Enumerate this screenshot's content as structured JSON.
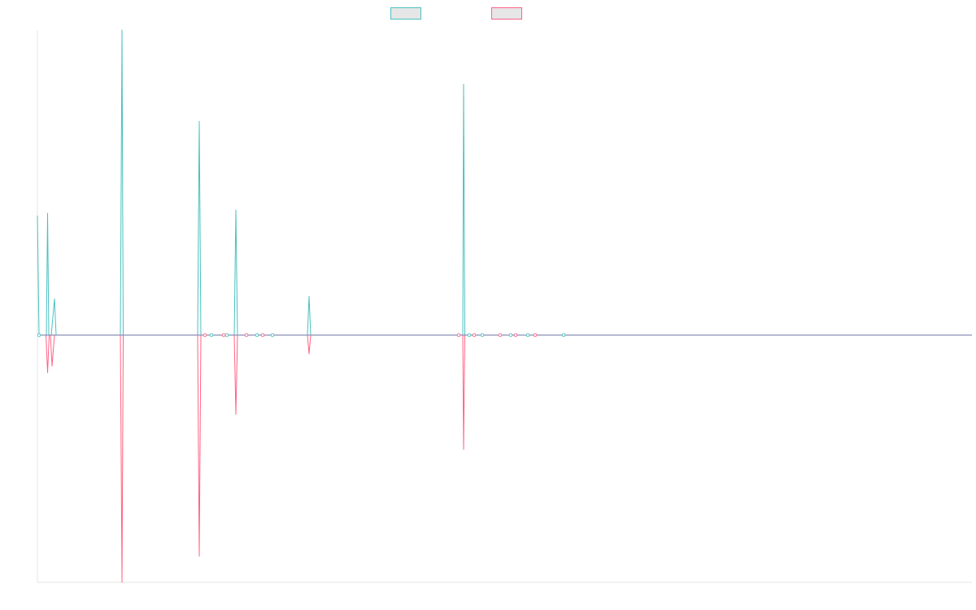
{
  "chart_data": {
    "type": "line",
    "title": "",
    "xlabel": "",
    "ylabel": "",
    "grid": false,
    "legend_position": "top-center",
    "x_range": [
      0,
      1149
    ],
    "y_range": [
      -303,
      378
    ],
    "series": [
      {
        "name": "",
        "color": "#4bc0c0",
        "points": [
          [
            0,
            148
          ],
          [
            2,
            0
          ],
          [
            11,
            0
          ],
          [
            12.5,
            151
          ],
          [
            14,
            0
          ],
          [
            17,
            0
          ],
          [
            21,
            45
          ],
          [
            23,
            0
          ],
          [
            102,
            0
          ],
          [
            104,
            378
          ],
          [
            105.5,
            0
          ],
          [
            107,
            0
          ],
          [
            197,
            0
          ],
          [
            199,
            265
          ],
          [
            201,
            0
          ],
          [
            202,
            0
          ],
          [
            206,
            0
          ],
          [
            208,
            0
          ],
          [
            214,
            0
          ],
          [
            229,
            0
          ],
          [
            233,
            0
          ],
          [
            242,
            0
          ],
          [
            244,
            155
          ],
          [
            246,
            0
          ],
          [
            257,
            0
          ],
          [
            262,
            0
          ],
          [
            270,
            0
          ],
          [
            277,
            0
          ],
          [
            289,
            0
          ],
          [
            332,
            0
          ],
          [
            334,
            48
          ],
          [
            336,
            0
          ],
          [
            518,
            0
          ],
          [
            523,
            0
          ],
          [
            524,
            311
          ],
          [
            525.5,
            0
          ],
          [
            527,
            0
          ],
          [
            531,
            0
          ],
          [
            537,
            0
          ],
          [
            547,
            0
          ],
          [
            569,
            0
          ],
          [
            582,
            0
          ],
          [
            588,
            0
          ],
          [
            603,
            0
          ],
          [
            612,
            0
          ],
          [
            647,
            0
          ],
          [
            1149,
            0
          ]
        ]
      },
      {
        "name": "",
        "color": "#ff6384",
        "points": [
          [
            0,
            0
          ],
          [
            10.5,
            0
          ],
          [
            12.5,
            -46
          ],
          [
            14.5,
            0
          ],
          [
            16,
            0
          ],
          [
            18,
            -38
          ],
          [
            21,
            0
          ],
          [
            23,
            0
          ],
          [
            102,
            0
          ],
          [
            104,
            -303
          ],
          [
            105.5,
            0
          ],
          [
            107,
            0
          ],
          [
            197,
            0
          ],
          [
            199,
            -271
          ],
          [
            201,
            0
          ],
          [
            202,
            0
          ],
          [
            206,
            0
          ],
          [
            208,
            0
          ],
          [
            214,
            0
          ],
          [
            229,
            0
          ],
          [
            233,
            0
          ],
          [
            242,
            0
          ],
          [
            244,
            -97
          ],
          [
            246,
            0
          ],
          [
            257,
            0
          ],
          [
            262,
            0
          ],
          [
            270,
            0
          ],
          [
            277,
            0
          ],
          [
            289,
            0
          ],
          [
            332,
            0
          ],
          [
            334,
            -23
          ],
          [
            336,
            0
          ],
          [
            518,
            0
          ],
          [
            523,
            0
          ],
          [
            524,
            -140
          ],
          [
            525.5,
            0
          ],
          [
            527,
            0
          ],
          [
            531,
            0
          ],
          [
            537,
            0
          ],
          [
            547,
            0
          ],
          [
            569,
            0
          ],
          [
            582,
            0
          ],
          [
            588,
            0
          ],
          [
            603,
            0
          ],
          [
            612,
            0
          ],
          [
            647,
            0
          ],
          [
            1149,
            0
          ]
        ]
      }
    ],
    "markers_x": [
      2,
      206,
      214,
      229,
      233,
      257,
      270,
      277,
      289,
      518,
      531,
      537,
      547,
      569,
      582,
      588,
      603,
      612,
      647
    ]
  }
}
